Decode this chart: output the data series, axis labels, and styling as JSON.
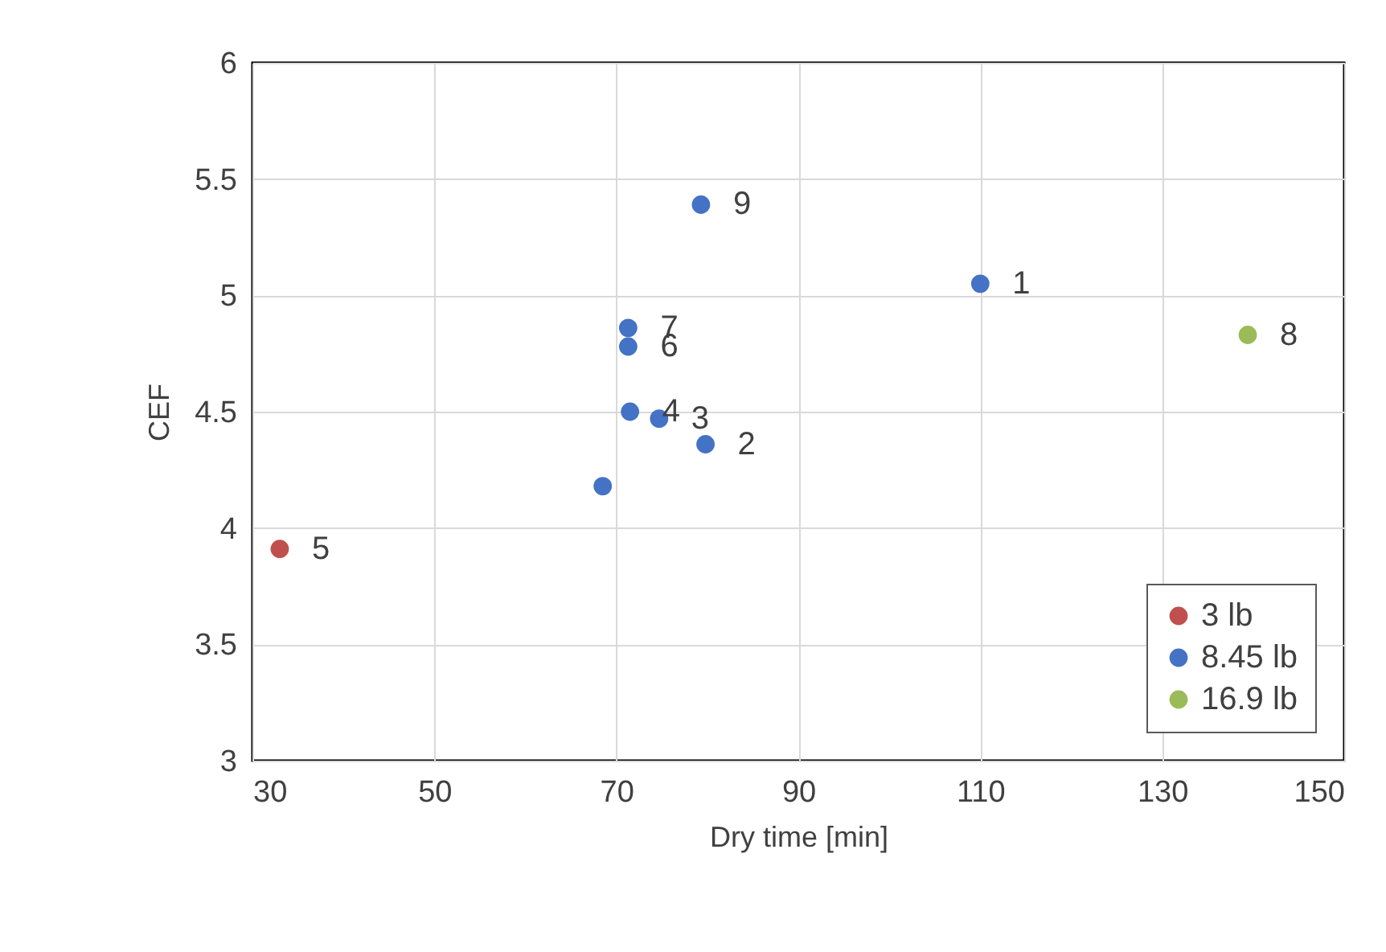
{
  "chart_data": {
    "type": "scatter",
    "xlabel": "Dry time [min]",
    "ylabel": "CEF",
    "xlim": [
      30,
      150
    ],
    "xticks": [
      30,
      50,
      70,
      90,
      110,
      130,
      150
    ],
    "ylim": [
      3,
      6
    ],
    "yticks": [
      3,
      3.5,
      4,
      4.5,
      5,
      5.5,
      6
    ],
    "grid": true,
    "legend": "bottom right",
    "marker": "circle",
    "series": [
      {
        "name": "3 lb",
        "color": "#c0504d",
        "x": [
          33
        ],
        "values": [
          3.91
        ]
      },
      {
        "name": "8.45 lb",
        "color": "#4472c4",
        "x": [
          110,
          79.8,
          74.7,
          71.5,
          71.3,
          71.3,
          79.3,
          68.5
        ],
        "values": [
          5.05,
          4.36,
          4.47,
          4.5,
          4.78,
          4.86,
          5.39,
          4.18
        ]
      },
      {
        "name": "16.9 lb",
        "color": "#9bbb59",
        "x": [
          139.4
        ],
        "values": [
          4.83
        ]
      }
    ],
    "annotations": [
      {
        "text": "1",
        "x": 110,
        "y": 5.05
      },
      {
        "text": "2",
        "x": 79.8,
        "y": 4.36
      },
      {
        "text": "3",
        "x": 74.7,
        "y": 4.47
      },
      {
        "text": "4",
        "x": 71.5,
        "y": 4.5
      },
      {
        "text": "5",
        "x": 33,
        "y": 3.91
      },
      {
        "text": "6",
        "x": 71.3,
        "y": 4.78
      },
      {
        "text": "7",
        "x": 71.3,
        "y": 4.86
      },
      {
        "text": "8",
        "x": 139.4,
        "y": 4.83
      },
      {
        "text": "9",
        "x": 79.3,
        "y": 5.39
      }
    ]
  }
}
